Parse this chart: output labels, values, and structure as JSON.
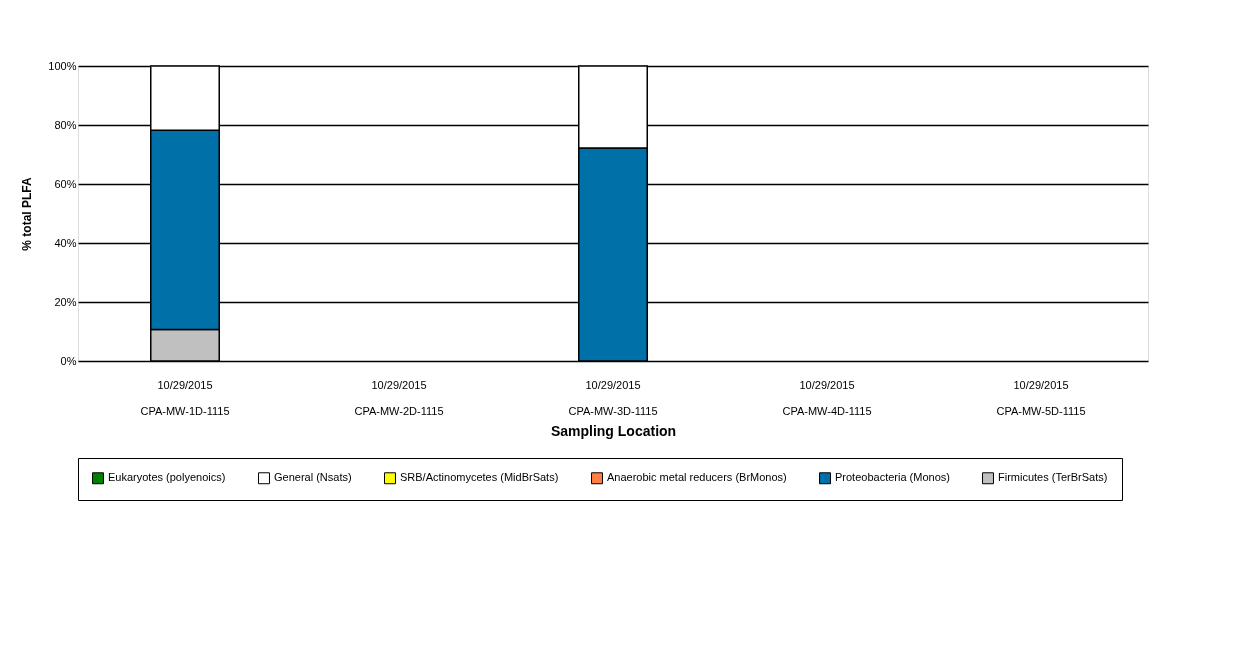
{
  "chart_data": {
    "type": "bar",
    "stacked": true,
    "xlabel": "Sampling Location",
    "ylabel": "% total PLFA",
    "categories": [
      "10/29/2015\nCPA-MW-1D-1115",
      "10/29/2015\nCPA-MW-2D-1115",
      "10/29/2015\nCPA-MW-3D-1115",
      "10/29/2015\nCPA-MW-4D-1115",
      "10/29/2015\nCPA-MW-5D-1115"
    ],
    "series": [
      {
        "name": "Firmicutes (TerBrSats)",
        "color": "#c0c0c0",
        "values": [
          10.7,
          null,
          null,
          null,
          null
        ]
      },
      {
        "name": "Proteobacteria (Monos)",
        "color": "#0070a8",
        "values": [
          67.5,
          null,
          72.2,
          null,
          null
        ]
      },
      {
        "name": "Anaerobic metal reducers (BrMonos)",
        "color": "#ff8040",
        "values": [
          null,
          null,
          null,
          null,
          null
        ]
      },
      {
        "name": "SRB/Actinomycetes (MidBrSats)",
        "color": "#ffff00",
        "values": [
          null,
          null,
          null,
          null,
          null
        ]
      },
      {
        "name": "General (Nsats)",
        "color": "#ffffff",
        "values": [
          21.8,
          null,
          27.8,
          null,
          null
        ]
      },
      {
        "name": "Eukaryotes (polyenoics)",
        "color": "#008000",
        "values": [
          null,
          null,
          null,
          null,
          null
        ]
      }
    ],
    "ylim": [
      0,
      100
    ],
    "yticks": [
      {
        "value": 0,
        "label": "0%"
      },
      {
        "value": 20,
        "label": "20%"
      },
      {
        "value": 40,
        "label": "40%"
      },
      {
        "value": 60,
        "label": "60%"
      },
      {
        "value": 80,
        "label": "80%"
      },
      {
        "value": 100,
        "label": "100%"
      }
    ],
    "grid": "y",
    "legend": "bottom"
  }
}
